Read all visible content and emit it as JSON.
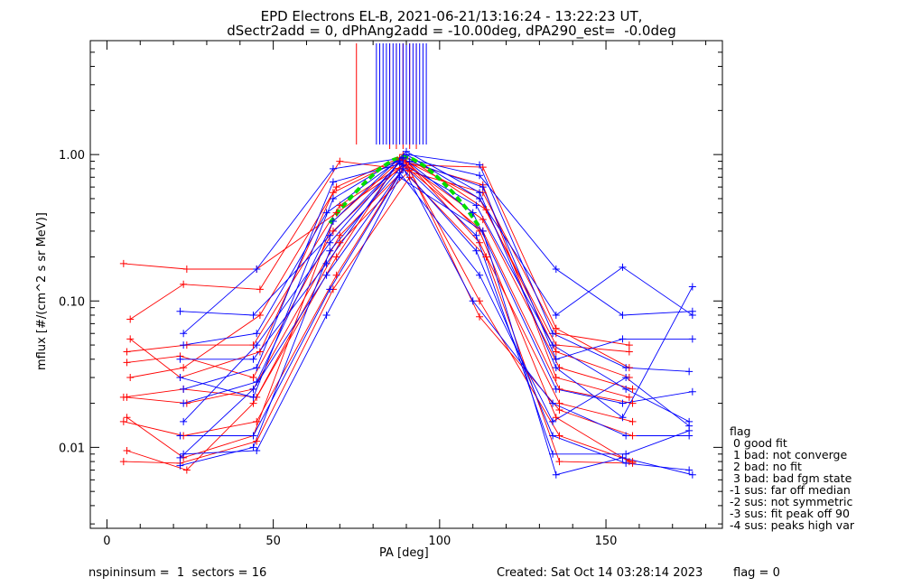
{
  "chart_data": {
    "type": "scatter",
    "title_lines": [
      "EPD Electrons EL-B, 2021-06-21/13:16:24 - 13:22:23 UT,",
      "dSectr2add = 0, dPhAng2add = -10.00deg, dPA290_est=  -0.0deg"
    ],
    "xlabel": "PA [deg]",
    "ylabel": "mflux [#/(cm^2 s sr MeV)]",
    "xlim": [
      -5,
      185
    ],
    "ylim": [
      0.0028,
      6
    ],
    "yscale": "log",
    "x_ticks": [
      0,
      50,
      100,
      150
    ],
    "y_ticks": [
      {
        "value": 0.01,
        "label": "0.01"
      },
      {
        "value": 0.1,
        "label": "0.10"
      },
      {
        "value": 1.0,
        "label": "1.00"
      }
    ],
    "grid": false,
    "series": [
      {
        "color": "#ff0000",
        "curves": [
          {
            "x": [
              6,
              23,
              44,
              68,
              89,
              112,
              135,
              157
            ],
            "y": [
              0.016,
              0.0085,
              0.012,
              0.35,
              0.95,
              0.3,
              0.016,
              0.008
            ]
          },
          {
            "x": [
              5,
              24,
              45,
              69,
              90,
              113,
              136,
              158
            ],
            "y": [
              0.18,
              0.165,
              0.165,
              0.4,
              0.85,
              0.36,
              0.035,
              0.025
            ]
          },
          {
            "x": [
              7,
              23,
              46,
              70,
              88,
              113,
              135,
              157
            ],
            "y": [
              0.075,
              0.13,
              0.12,
              0.9,
              0.8,
              0.55,
              0.06,
              0.05
            ]
          },
          {
            "x": [
              6,
              22,
              44,
              68,
              90,
              112,
              136,
              158
            ],
            "y": [
              0.038,
              0.042,
              0.03,
              0.3,
              0.9,
              0.25,
              0.02,
              0.015
            ]
          },
          {
            "x": [
              5,
              23,
              45,
              69,
              89,
              114,
              135,
              157
            ],
            "y": [
              0.022,
              0.025,
              0.022,
              0.2,
              1.0,
              0.42,
              0.045,
              0.03
            ]
          },
          {
            "x": [
              6,
              24,
              44,
              70,
              91,
              112,
              136,
              158
            ],
            "y": [
              0.0095,
              0.007,
              0.02,
              0.25,
              0.78,
              0.1,
              0.012,
              0.008
            ]
          },
          {
            "x": [
              7,
              22,
              46,
              68,
              88,
              113,
              135,
              157
            ],
            "y": [
              0.055,
              0.03,
              0.045,
              0.55,
              0.92,
              0.62,
              0.03,
              0.022
            ]
          },
          {
            "x": [
              5,
              23,
              45,
              69,
              90,
              112,
              136,
              158
            ],
            "y": [
              0.015,
              0.012,
              0.015,
              0.15,
              0.88,
              0.078,
              0.018,
              0.012
            ]
          },
          {
            "x": [
              6,
              24,
              44,
              70,
              89,
              113,
              135,
              157
            ],
            "y": [
              0.045,
              0.05,
              0.05,
              0.45,
              0.85,
              0.82,
              0.065,
              0.035
            ]
          },
          {
            "x": [
              5,
              22,
              45,
              68,
              91,
              114,
              136,
              158
            ],
            "y": [
              0.008,
              0.0078,
              0.011,
              0.12,
              0.7,
              0.2,
              0.008,
              0.0078
            ]
          },
          {
            "x": [
              7,
              23,
              46,
              69,
              88,
              112,
              135,
              157
            ],
            "y": [
              0.03,
              0.035,
              0.08,
              0.6,
              0.95,
              0.5,
              0.05,
              0.045
            ]
          },
          {
            "x": [
              6,
              24,
              44,
              70,
              90,
              113,
              136,
              158
            ],
            "y": [
              0.022,
              0.02,
              0.025,
              0.28,
              0.82,
              0.3,
              0.025,
              0.02
            ]
          }
        ]
      },
      {
        "color": "#0000ff",
        "curves": [
          {
            "x": [
              22,
              44,
              67,
              88,
              111,
              134,
              156,
              175
            ],
            "y": [
              0.085,
              0.08,
              0.28,
              0.88,
              0.45,
              0.05,
              0.025,
              0.015
            ]
          },
          {
            "x": [
              23,
              45,
              68,
              89,
              112,
              135,
              155,
              176
            ],
            "y": [
              0.06,
              0.165,
              0.8,
              0.95,
              0.72,
              0.165,
              0.08,
              0.085
            ]
          },
          {
            "x": [
              22,
              44,
              66,
              88,
              110,
              134,
              156,
              175
            ],
            "y": [
              0.04,
              0.04,
              0.18,
              0.9,
              0.1,
              0.02,
              0.012,
              0.012
            ]
          },
          {
            "x": [
              23,
              45,
              68,
              90,
              112,
              135,
              155,
              176
            ],
            "y": [
              0.02,
              0.028,
              0.35,
              1.05,
              0.55,
              0.035,
              0.016,
              0.125
            ]
          },
          {
            "x": [
              22,
              44,
              67,
              89,
              111,
              134,
              156,
              175
            ],
            "y": [
              0.012,
              0.012,
              0.12,
              0.8,
              0.22,
              0.012,
              0.0078,
              0.007
            ]
          },
          {
            "x": [
              23,
              45,
              66,
              88,
              113,
              135,
              155,
              176
            ],
            "y": [
              0.009,
              0.0095,
              0.08,
              0.7,
              0.3,
              0.0065,
              0.0085,
              0.0065
            ]
          },
          {
            "x": [
              22,
              44,
              68,
              90,
              112,
              134,
              156,
              175
            ],
            "y": [
              0.03,
              0.022,
              0.5,
              1.0,
              0.85,
              0.06,
              0.035,
              0.033
            ]
          },
          {
            "x": [
              23,
              45,
              67,
              89,
              110,
              135,
              155,
              176
            ],
            "y": [
              0.015,
              0.05,
              0.25,
              0.95,
              0.4,
              0.025,
              0.02,
              0.024
            ]
          },
          {
            "x": [
              22,
              44,
              66,
              88,
              112,
              134,
              156,
              175
            ],
            "y": [
              0.0085,
              0.025,
              0.15,
              0.75,
              0.15,
              0.015,
              0.03,
              0.014
            ]
          },
          {
            "x": [
              23,
              45,
              68,
              91,
              113,
              135,
              155,
              176
            ],
            "y": [
              0.025,
              0.035,
              0.65,
              0.9,
              0.6,
              0.04,
              0.055,
              0.055
            ]
          },
          {
            "x": [
              22,
              44,
              67,
              89,
              111,
              134,
              156,
              175
            ],
            "y": [
              0.0075,
              0.01,
              0.22,
              0.85,
              0.28,
              0.009,
              0.009,
              0.013
            ]
          },
          {
            "x": [
              23,
              45,
              66,
              90,
              112,
              135,
              155,
              176
            ],
            "y": [
              0.05,
              0.06,
              0.4,
              1.0,
              0.5,
              0.08,
              0.17,
              0.08
            ]
          }
        ]
      },
      {
        "name": "",
        "color": "#00dd00",
        "dashed": true,
        "curves": [
          {
            "x": [
              67,
              70,
              74,
              78,
              82,
              86,
              89,
              92,
              96,
              100,
              104,
              108,
              112
            ],
            "y": [
              0.34,
              0.42,
              0.53,
              0.66,
              0.8,
              0.92,
              0.97,
              0.93,
              0.82,
              0.68,
              0.55,
              0.43,
              0.32
            ]
          }
        ]
      }
    ],
    "marker_lines": {
      "red": [
        75,
        85,
        87,
        89,
        91,
        93
      ],
      "blue": [
        81,
        82,
        83,
        84,
        85,
        86,
        87,
        88,
        89,
        90,
        91,
        92,
        93,
        94,
        95,
        96
      ]
    }
  },
  "legend": {
    "items": [
      "flag",
      " 0 good fit",
      " 1 bad: not converge",
      " 2 bad: no fit",
      " 3 bad: bad fgm state",
      "-1 sus: far off median",
      "-2 sus: not symmetric",
      "-3 sus: fit peak off 90",
      "-4 sus: peaks high var"
    ]
  },
  "footer": {
    "left": "nspininsum =  1  sectors = 16",
    "created": "Created: Sat Oct 14 03:28:14 2023",
    "flag": "flag = 0"
  }
}
